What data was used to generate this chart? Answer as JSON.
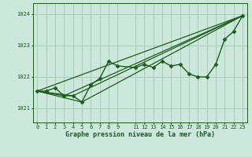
{
  "bg_color": "#cce8dc",
  "grid_color": "#aaccbb",
  "line_color": "#1a5c1a",
  "title": "Graphe pression niveau de la mer (hPa)",
  "ylabel_ticks": [
    1021,
    1022,
    1023,
    1024
  ],
  "xlim": [
    -0.5,
    23.5
  ],
  "ylim": [
    1020.55,
    1024.35
  ],
  "x_ticks": [
    0,
    1,
    2,
    3,
    4,
    5,
    6,
    7,
    8,
    9,
    11,
    12,
    13,
    14,
    15,
    16,
    17,
    18,
    19,
    20,
    21,
    22,
    23
  ],
  "series": [
    {
      "x": [
        0,
        1,
        2,
        3,
        4,
        5,
        6,
        7,
        8,
        9,
        11,
        12,
        13,
        14,
        15,
        16,
        17,
        18,
        19,
        20,
        21,
        22,
        23
      ],
      "y": [
        1021.55,
        1021.55,
        1021.65,
        1021.4,
        1021.4,
        1021.2,
        1021.75,
        1021.95,
        1022.5,
        1022.35,
        1022.3,
        1022.4,
        1022.3,
        1022.5,
        1022.35,
        1022.4,
        1022.1,
        1022.0,
        1022.0,
        1022.4,
        1023.2,
        1023.45,
        1023.95
      ],
      "marker": "D",
      "markersize": 2.5,
      "linewidth": 1.0,
      "zorder": 4
    },
    {
      "x": [
        0,
        23
      ],
      "y": [
        1021.55,
        1023.95
      ],
      "marker": null,
      "linewidth": 0.9,
      "zorder": 2
    },
    {
      "x": [
        0,
        3,
        23
      ],
      "y": [
        1021.55,
        1021.4,
        1023.95
      ],
      "marker": null,
      "linewidth": 0.9,
      "zorder": 2
    },
    {
      "x": [
        0,
        4,
        23
      ],
      "y": [
        1021.55,
        1021.4,
        1023.95
      ],
      "marker": null,
      "linewidth": 0.9,
      "zorder": 2
    },
    {
      "x": [
        0,
        5,
        23
      ],
      "y": [
        1021.55,
        1021.2,
        1023.95
      ],
      "marker": null,
      "linewidth": 0.9,
      "zorder": 2
    }
  ]
}
